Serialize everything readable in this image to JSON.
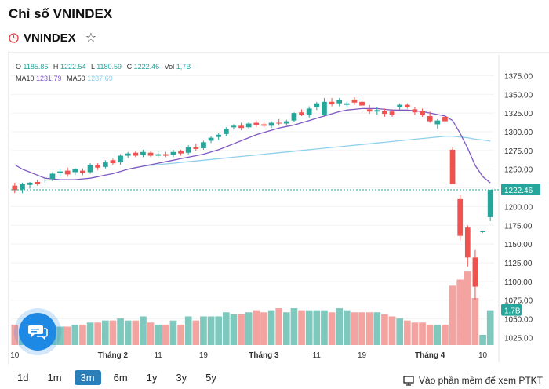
{
  "page": {
    "title": "Chỉ số VNINDEX",
    "symbol": "VNINDEX"
  },
  "legend": {
    "o_label": "O",
    "o_value": "1185.86",
    "h_label": "H",
    "h_value": "1222.54",
    "l_label": "L",
    "l_value": "1180.59",
    "c_label": "C",
    "c_value": "1222.46",
    "vol_label": "Vol",
    "vol_value": "1,7B",
    "ma10_label": "MA10",
    "ma10_value": "1231.79",
    "ma50_label": "MA50",
    "ma50_value": "1287.69"
  },
  "colors": {
    "up": "#26a69a",
    "down": "#ef5350",
    "ma10": "#7e57c2",
    "ma50": "#8fd0ec",
    "accent": "#2a7fb8"
  },
  "chart_data": {
    "type": "candlestick",
    "y_ticks": [
      1025,
      1050,
      1075,
      1100,
      1125,
      1150,
      1175,
      1200,
      1225,
      1250,
      1275,
      1300,
      1325,
      1350,
      1375
    ],
    "y_tick_labels": [
      "1025.00",
      "1050.00",
      "1075.00",
      "1100.00",
      "1125.00",
      "1150.00",
      "1175.00",
      "1200.00",
      "1225.00",
      "1250.00",
      "1275.00",
      "1300.00",
      "1325.00",
      "1350.00",
      "1375.00"
    ],
    "ylim": [
      1015,
      1388
    ],
    "x_labels": [
      {
        "i": 0,
        "label": "10"
      },
      {
        "i": 13,
        "label": "Tháng 2"
      },
      {
        "i": 19,
        "label": "11"
      },
      {
        "i": 25,
        "label": "19"
      },
      {
        "i": 33,
        "label": "Tháng 3"
      },
      {
        "i": 40,
        "label": "11"
      },
      {
        "i": 46,
        "label": "19"
      },
      {
        "i": 55,
        "label": "Tháng 4"
      },
      {
        "i": 62,
        "label": "10"
      }
    ],
    "last_price": 1222.46,
    "last_price_label": "1222.46",
    "last_volume_label": "1.7B",
    "candles": [
      {
        "o": 1228,
        "h": 1232,
        "l": 1218,
        "c": 1222,
        "v": 1.0
      },
      {
        "o": 1223,
        "h": 1232,
        "l": 1218,
        "c": 1230,
        "v": 0.7
      },
      {
        "o": 1229,
        "h": 1233,
        "l": 1224,
        "c": 1232,
        "v": 0.8
      },
      {
        "o": 1233,
        "h": 1236,
        "l": 1228,
        "c": 1230,
        "v": 0.8
      },
      {
        "o": 1235,
        "h": 1240,
        "l": 1232,
        "c": 1236,
        "v": 0.9
      },
      {
        "o": 1237,
        "h": 1246,
        "l": 1234,
        "c": 1244,
        "v": 0.8
      },
      {
        "o": 1245,
        "h": 1250,
        "l": 1240,
        "c": 1247,
        "v": 0.9
      },
      {
        "o": 1248,
        "h": 1252,
        "l": 1240,
        "c": 1243,
        "v": 0.9
      },
      {
        "o": 1246,
        "h": 1252,
        "l": 1242,
        "c": 1250,
        "v": 1.0
      },
      {
        "o": 1248,
        "h": 1251,
        "l": 1242,
        "c": 1245,
        "v": 1.0
      },
      {
        "o": 1246,
        "h": 1258,
        "l": 1244,
        "c": 1256,
        "v": 1.1
      },
      {
        "o": 1255,
        "h": 1258,
        "l": 1249,
        "c": 1252,
        "v": 1.1
      },
      {
        "o": 1253,
        "h": 1262,
        "l": 1251,
        "c": 1259,
        "v": 1.2
      },
      {
        "o": 1262,
        "h": 1264,
        "l": 1256,
        "c": 1258,
        "v": 1.2
      },
      {
        "o": 1259,
        "h": 1270,
        "l": 1256,
        "c": 1268,
        "v": 1.3
      },
      {
        "o": 1268,
        "h": 1273,
        "l": 1265,
        "c": 1271,
        "v": 1.2
      },
      {
        "o": 1272,
        "h": 1274,
        "l": 1266,
        "c": 1268,
        "v": 1.2
      },
      {
        "o": 1269,
        "h": 1276,
        "l": 1266,
        "c": 1273,
        "v": 1.4
      },
      {
        "o": 1272,
        "h": 1274,
        "l": 1266,
        "c": 1268,
        "v": 1.1
      },
      {
        "o": 1268,
        "h": 1274,
        "l": 1264,
        "c": 1270,
        "v": 1.0
      },
      {
        "o": 1270,
        "h": 1273,
        "l": 1266,
        "c": 1268,
        "v": 1.0
      },
      {
        "o": 1269,
        "h": 1276,
        "l": 1266,
        "c": 1273,
        "v": 1.2
      },
      {
        "o": 1274,
        "h": 1276,
        "l": 1268,
        "c": 1271,
        "v": 1.0
      },
      {
        "o": 1272,
        "h": 1282,
        "l": 1270,
        "c": 1280,
        "v": 1.4
      },
      {
        "o": 1280,
        "h": 1284,
        "l": 1275,
        "c": 1277,
        "v": 1.2
      },
      {
        "o": 1278,
        "h": 1288,
        "l": 1276,
        "c": 1286,
        "v": 1.4
      },
      {
        "o": 1288,
        "h": 1294,
        "l": 1285,
        "c": 1292,
        "v": 1.4
      },
      {
        "o": 1293,
        "h": 1298,
        "l": 1289,
        "c": 1296,
        "v": 1.4
      },
      {
        "o": 1297,
        "h": 1306,
        "l": 1294,
        "c": 1304,
        "v": 1.6
      },
      {
        "o": 1306,
        "h": 1310,
        "l": 1303,
        "c": 1308,
        "v": 1.5
      },
      {
        "o": 1308,
        "h": 1312,
        "l": 1302,
        "c": 1305,
        "v": 1.5
      },
      {
        "o": 1306,
        "h": 1313,
        "l": 1304,
        "c": 1311,
        "v": 1.6
      },
      {
        "o": 1312,
        "h": 1315,
        "l": 1306,
        "c": 1309,
        "v": 1.7
      },
      {
        "o": 1310,
        "h": 1313,
        "l": 1306,
        "c": 1308,
        "v": 1.6
      },
      {
        "o": 1308,
        "h": 1314,
        "l": 1305,
        "c": 1312,
        "v": 1.7
      },
      {
        "o": 1312,
        "h": 1317,
        "l": 1308,
        "c": 1311,
        "v": 1.8
      },
      {
        "o": 1311,
        "h": 1316,
        "l": 1308,
        "c": 1314,
        "v": 1.6
      },
      {
        "o": 1315,
        "h": 1326,
        "l": 1313,
        "c": 1325,
        "v": 1.8
      },
      {
        "o": 1326,
        "h": 1330,
        "l": 1321,
        "c": 1323,
        "v": 1.7
      },
      {
        "o": 1322,
        "h": 1334,
        "l": 1319,
        "c": 1331,
        "v": 1.7
      },
      {
        "o": 1333,
        "h": 1340,
        "l": 1329,
        "c": 1338,
        "v": 1.7
      },
      {
        "o": 1322,
        "h": 1345,
        "l": 1320,
        "c": 1340,
        "v": 1.7
      },
      {
        "o": 1340,
        "h": 1345,
        "l": 1334,
        "c": 1337,
        "v": 1.6
      },
      {
        "o": 1338,
        "h": 1345,
        "l": 1334,
        "c": 1342,
        "v": 1.8
      },
      {
        "o": 1336,
        "h": 1340,
        "l": 1332,
        "c": 1338,
        "v": 1.7
      },
      {
        "o": 1343,
        "h": 1346,
        "l": 1336,
        "c": 1339,
        "v": 1.6
      },
      {
        "o": 1340,
        "h": 1346,
        "l": 1333,
        "c": 1335,
        "v": 1.6
      },
      {
        "o": 1330,
        "h": 1336,
        "l": 1324,
        "c": 1327,
        "v": 1.6
      },
      {
        "o": 1327,
        "h": 1333,
        "l": 1323,
        "c": 1329,
        "v": 1.6
      },
      {
        "o": 1328,
        "h": 1331,
        "l": 1320,
        "c": 1324,
        "v": 1.5
      },
      {
        "o": 1327,
        "h": 1330,
        "l": 1320,
        "c": 1323,
        "v": 1.4
      },
      {
        "o": 1333,
        "h": 1338,
        "l": 1329,
        "c": 1336,
        "v": 1.3
      },
      {
        "o": 1336,
        "h": 1338,
        "l": 1331,
        "c": 1333,
        "v": 1.2
      },
      {
        "o": 1330,
        "h": 1333,
        "l": 1323,
        "c": 1326,
        "v": 1.1
      },
      {
        "o": 1328,
        "h": 1331,
        "l": 1320,
        "c": 1322,
        "v": 1.1
      },
      {
        "o": 1321,
        "h": 1327,
        "l": 1312,
        "c": 1314,
        "v": 1.0
      },
      {
        "o": 1310,
        "h": 1317,
        "l": 1304,
        "c": 1315,
        "v": 1.0
      },
      {
        "o": 1320,
        "h": 1322,
        "l": 1311,
        "c": 1314,
        "v": 1.0
      },
      {
        "o": 1276,
        "h": 1280,
        "l": 1230,
        "c": 1230,
        "v": 2.9
      },
      {
        "o": 1210,
        "h": 1216,
        "l": 1155,
        "c": 1161,
        "v": 3.2
      },
      {
        "o": 1172,
        "h": 1175,
        "l": 1120,
        "c": 1132,
        "v": 3.6
      },
      {
        "o": 1132,
        "h": 1142,
        "l": 1075,
        "c": 1093,
        "v": 2.3
      },
      {
        "o": 1166,
        "h": 1168,
        "l": 1165,
        "c": 1167,
        "v": 0.5
      },
      {
        "o": 1185.86,
        "h": 1222.54,
        "l": 1180.59,
        "c": 1222.46,
        "v": 1.7
      }
    ],
    "ma10": [
      1256,
      1250,
      1246,
      1242,
      1238,
      1237,
      1236,
      1236,
      1236,
      1237,
      1238,
      1240,
      1242,
      1244,
      1247,
      1250,
      1252,
      1254,
      1256,
      1258,
      1260,
      1262,
      1264,
      1266,
      1268,
      1270,
      1273,
      1276,
      1280,
      1284,
      1288,
      1292,
      1296,
      1299,
      1302,
      1305,
      1307,
      1309,
      1312,
      1315,
      1318,
      1321,
      1324,
      1327,
      1329,
      1330,
      1331,
      1331,
      1331,
      1330,
      1329,
      1329,
      1329,
      1328,
      1327,
      1325,
      1323,
      1321,
      1315,
      1298,
      1278,
      1255,
      1240,
      1231.79
    ],
    "ma50": [
      null,
      null,
      null,
      null,
      null,
      null,
      null,
      null,
      null,
      null,
      null,
      null,
      null,
      null,
      null,
      null,
      null,
      1254,
      1255,
      1256,
      1257,
      1258,
      1259,
      1260,
      1261,
      1262,
      1263,
      1264,
      1265,
      1266,
      1267,
      1268,
      1269,
      1270,
      1271,
      1272,
      1273,
      1274,
      1275,
      1276,
      1277,
      1278,
      1279,
      1280,
      1281,
      1282,
      1283,
      1284,
      1285,
      1286,
      1287,
      1288,
      1289,
      1290,
      1291,
      1292,
      1293,
      1294,
      1294,
      1293,
      1292,
      1290,
      1289,
      1287.69
    ]
  },
  "ranges": [
    "1d",
    "1m",
    "3m",
    "6m",
    "1y",
    "3y",
    "5y"
  ],
  "active_range": "3m",
  "ptkt_label": "Vào phần mềm để xem PTKT",
  "icons": {
    "clock": "clock-icon",
    "star": "star-icon",
    "chat": "chat-icon",
    "monitor": "monitor-icon"
  }
}
